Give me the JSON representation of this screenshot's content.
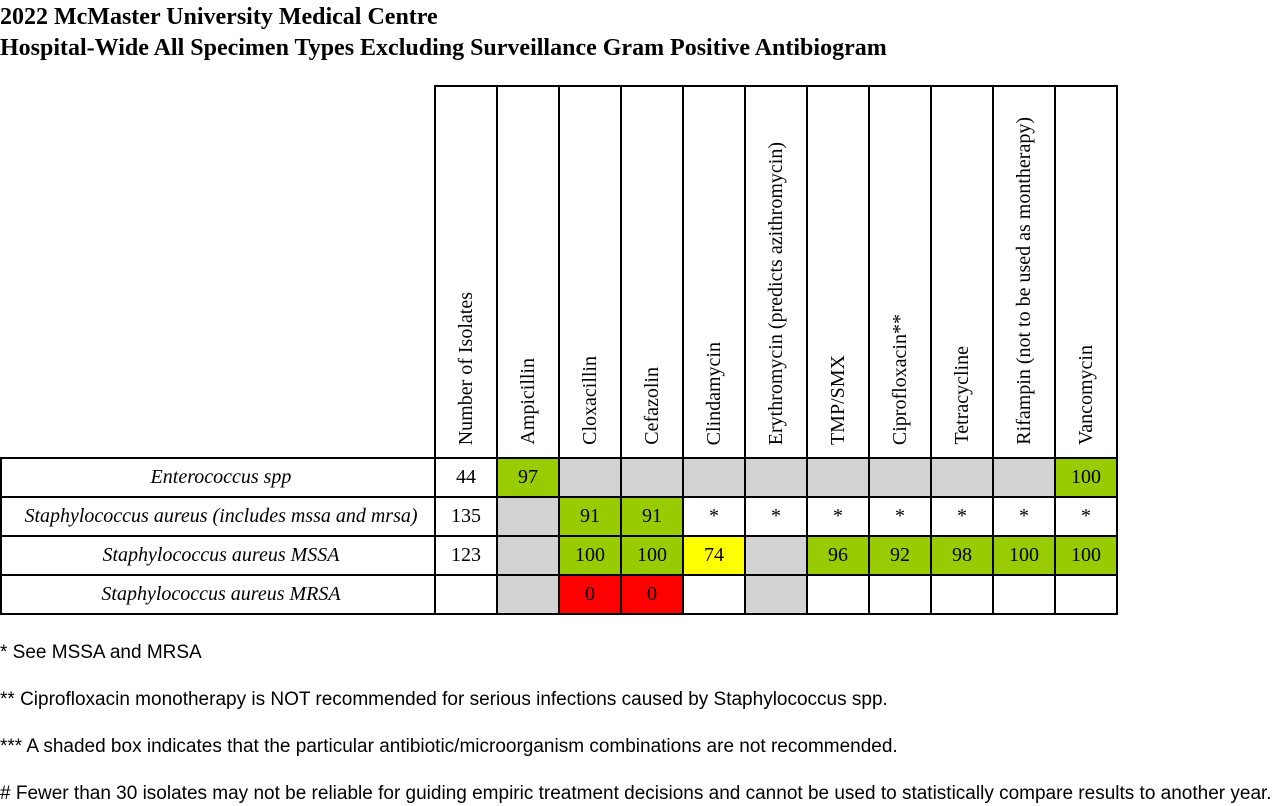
{
  "title": {
    "line1": "2022 McMaster University Medical Centre",
    "line2": "Hospital-Wide All Specimen Types Excluding Surveillance Gram Positive Antibiogram"
  },
  "colors": {
    "susceptible_high": "#99cc00",
    "not_recommended": "#d3d3d3",
    "intermediate": "#ffff00",
    "low": "#ff0000"
  },
  "table": {
    "columns": [
      "Number of Isolates",
      "Ampicillin",
      "Cloxacillin",
      "Cefazolin",
      "Clindamycin",
      "Erythromycin (predicts azithromycin)",
      "TMP/SMX",
      "Ciprofloxacin**",
      "Tetracycline",
      "Rifampin (not to be used as montherapy)",
      "Vancomycin"
    ],
    "rows": [
      {
        "organism": "Enterococcus spp",
        "cells": [
          {
            "value": "44",
            "color": "white"
          },
          {
            "value": "97",
            "color": "green"
          },
          {
            "value": "",
            "color": "grey"
          },
          {
            "value": "",
            "color": "grey"
          },
          {
            "value": "",
            "color": "grey"
          },
          {
            "value": "",
            "color": "grey"
          },
          {
            "value": "",
            "color": "grey"
          },
          {
            "value": "",
            "color": "grey"
          },
          {
            "value": "",
            "color": "grey"
          },
          {
            "value": "",
            "color": "grey"
          },
          {
            "value": "100",
            "color": "green"
          }
        ]
      },
      {
        "organism": "Staphylococcus aureus (includes mssa and mrsa)",
        "cells": [
          {
            "value": "135",
            "color": "white"
          },
          {
            "value": "",
            "color": "grey"
          },
          {
            "value": "91",
            "color": "green"
          },
          {
            "value": "91",
            "color": "green"
          },
          {
            "value": "*",
            "color": "white"
          },
          {
            "value": "*",
            "color": "white"
          },
          {
            "value": "*",
            "color": "white"
          },
          {
            "value": "*",
            "color": "white"
          },
          {
            "value": "*",
            "color": "white"
          },
          {
            "value": "*",
            "color": "white"
          },
          {
            "value": "*",
            "color": "white"
          }
        ]
      },
      {
        "organism": "Staphylococcus aureus MSSA",
        "cells": [
          {
            "value": "123",
            "color": "white"
          },
          {
            "value": "",
            "color": "grey"
          },
          {
            "value": "100",
            "color": "green"
          },
          {
            "value": "100",
            "color": "green"
          },
          {
            "value": "74",
            "color": "yellow"
          },
          {
            "value": "",
            "color": "grey"
          },
          {
            "value": "96",
            "color": "green"
          },
          {
            "value": "92",
            "color": "green"
          },
          {
            "value": "98",
            "color": "green"
          },
          {
            "value": "100",
            "color": "green"
          },
          {
            "value": "100",
            "color": "green"
          }
        ]
      },
      {
        "organism": "Staphylococcus aureus MRSA",
        "cells": [
          {
            "value": "",
            "color": "white"
          },
          {
            "value": "",
            "color": "grey"
          },
          {
            "value": "0",
            "color": "red"
          },
          {
            "value": "0",
            "color": "red"
          },
          {
            "value": "",
            "color": "white"
          },
          {
            "value": "",
            "color": "grey"
          },
          {
            "value": "",
            "color": "white"
          },
          {
            "value": "",
            "color": "white"
          },
          {
            "value": "",
            "color": "white"
          },
          {
            "value": "",
            "color": "white"
          },
          {
            "value": "",
            "color": "white"
          }
        ]
      }
    ]
  },
  "notes": [
    "* See MSSA and MRSA",
    "** Ciprofloxacin monotherapy is NOT recommended for serious infections caused by Staphylococcus spp.",
    "*** A shaded box indicates that the particular antibiotic/microorganism combinations are not recommended.",
    "# Fewer than 30 isolates may not be reliable for guiding empiric treatment decisions and cannot be used to statistically compare results to another year."
  ]
}
